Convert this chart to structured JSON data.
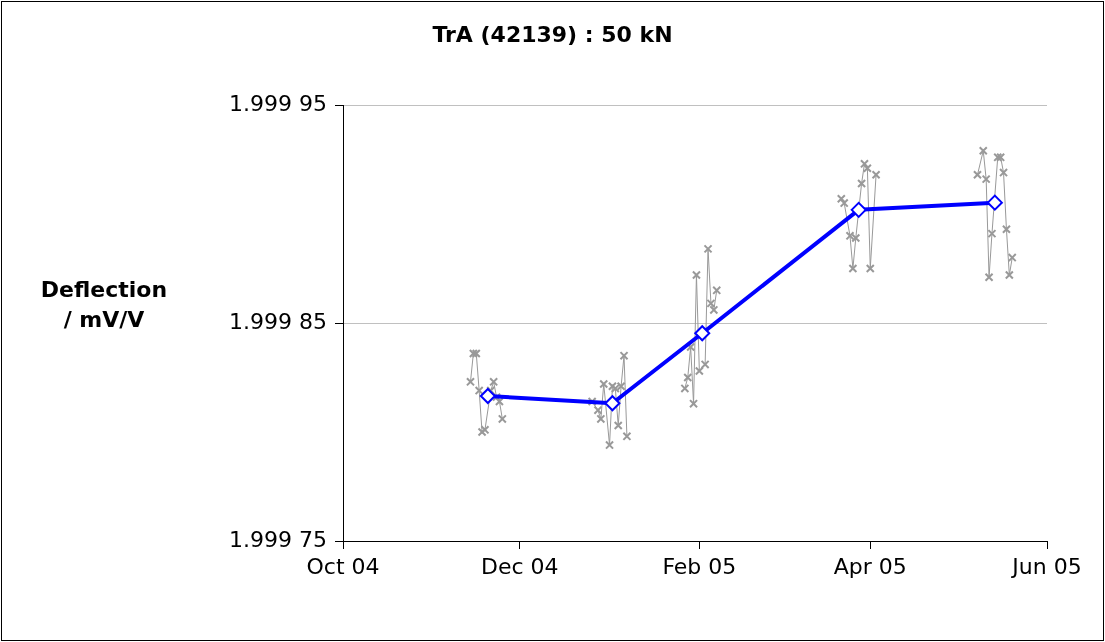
{
  "chart_data": {
    "type": "line",
    "title": "TrA (42139) : 50 kN",
    "ylabel": "Deflection / mV/V",
    "xlim": [
      "2004-10-01",
      "2005-06-01"
    ],
    "xticks": [
      {
        "value": "2004-10-01",
        "label": "Oct 04"
      },
      {
        "value": "2004-12-01",
        "label": "Dec 04"
      },
      {
        "value": "2005-02-01",
        "label": "Feb 05"
      },
      {
        "value": "2005-04-01",
        "label": "Apr 05"
      },
      {
        "value": "2005-06-01",
        "label": "Jun 05"
      }
    ],
    "ylim": [
      1.99975,
      1.99995
    ],
    "yticks": [
      1.99975,
      1.99985,
      1.99995
    ],
    "grid": "y",
    "legend": false,
    "series": [
      {
        "color": "#999999",
        "marker": "cross",
        "line_style": "solid",
        "x": [
          "2004-11-14",
          "2004-11-15",
          "2004-11-16",
          "2004-11-17",
          "2004-11-18",
          "2004-11-19",
          "2004-11-21",
          "2004-11-22",
          "2004-11-23",
          "2004-11-24",
          "2004-11-25",
          "2004-12-10",
          "2004-12-26",
          "2004-12-28",
          "2004-12-29",
          "2004-12-30",
          "2005-01-01",
          "2005-01-02",
          "2005-01-03",
          "2005-01-04",
          "2005-01-05",
          "2005-01-06",
          "2005-01-07",
          "2005-01-17",
          "2005-01-27",
          "2005-01-28",
          "2005-01-29",
          "2005-01-30",
          "2005-01-31",
          "2005-02-01",
          "2005-02-03",
          "2005-02-04",
          "2005-02-05",
          "2005-02-06",
          "2005-02-07",
          "2005-03-01",
          "2005-03-22",
          "2005-03-23",
          "2005-03-25",
          "2005-03-26",
          "2005-03-27",
          "2005-03-29",
          "2005-03-30",
          "2005-03-31",
          "2005-04-01",
          "2005-04-03",
          "2005-04-20",
          "2005-05-08",
          "2005-05-10",
          "2005-05-11",
          "2005-05-12",
          "2005-05-13",
          "2005-05-15",
          "2005-05-16",
          "2005-05-17",
          "2005-05-18",
          "2005-05-19",
          "2005-05-20"
        ],
        "values": [
          1.999823,
          1.999836,
          1.999836,
          1.999819,
          1.9998,
          1.999801,
          1.999819,
          1.999823,
          1.999816,
          1.999814,
          1.999806,
          null,
          1.999814,
          1.99981,
          1.999806,
          1.999822,
          1.999794,
          1.999821,
          1.99982,
          1.999803,
          1.999821,
          1.999835,
          1.999798,
          null,
          1.99982,
          1.999825,
          1.999839,
          1.999813,
          1.999872,
          1.999828,
          1.999831,
          1.999884,
          1.999859,
          1.999856,
          1.999865,
          null,
          1.999907,
          1.999905,
          1.99989,
          1.999875,
          1.999889,
          1.999914,
          1.999923,
          1.999921,
          1.999875,
          1.999918,
          null,
          1.999918,
          1.999929,
          1.999916,
          1.999871,
          1.999891,
          1.999926,
          1.999926,
          1.999919,
          1.999893,
          1.999872,
          1.99988
        ]
      },
      {
        "color": "#0000ff",
        "marker": "diamond",
        "line_style": "solid",
        "x": [
          "2004-11-20",
          "2005-01-02",
          "2005-02-02",
          "2005-03-28",
          "2005-05-14"
        ],
        "values": [
          1.9998165,
          1.9998132,
          1.9998453,
          1.9999019,
          1.9999052
        ]
      }
    ]
  }
}
